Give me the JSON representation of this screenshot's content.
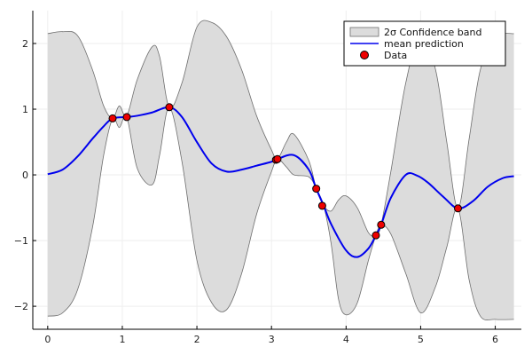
{
  "chart_data": {
    "type": "line",
    "title": "",
    "xlabel": "",
    "ylabel": "",
    "xlim": [
      -0.2,
      6.35
    ],
    "ylim": [
      -2.35,
      2.5
    ],
    "x_ticks": [
      0,
      1,
      2,
      3,
      4,
      5,
      6
    ],
    "y_ticks": [
      -2,
      -1,
      0,
      1,
      2
    ],
    "grid": true,
    "legend_position": "top-right",
    "legend": [
      {
        "label": "2σ Confidence band",
        "kind": "band"
      },
      {
        "label": "mean prediction",
        "kind": "line"
      },
      {
        "label": "Data",
        "kind": "marker"
      }
    ],
    "colors": {
      "band_fill": "#dcdcdc",
      "band_edge": "#6e6e6e",
      "mean": "#0000ee",
      "marker_fill": "#ee0000",
      "marker_edge": "#000000",
      "axis": "#000000",
      "grid": "#eeeeee"
    },
    "series": [
      {
        "name": "mean prediction",
        "x": [
          0,
          0.2,
          0.4,
          0.6,
          0.75,
          0.87,
          1.06,
          1.2,
          1.4,
          1.63,
          1.8,
          2.0,
          2.2,
          2.4,
          2.6,
          2.8,
          3.0,
          3.08,
          3.3,
          3.5,
          3.6,
          3.7,
          3.8,
          4.0,
          4.15,
          4.3,
          4.4,
          4.47,
          4.6,
          4.8,
          4.95,
          5.1,
          5.3,
          5.5,
          5.7,
          5.9,
          6.1,
          6.25
        ],
        "y": [
          0.01,
          0.08,
          0.28,
          0.55,
          0.74,
          0.86,
          0.88,
          0.9,
          0.95,
          1.03,
          0.88,
          0.5,
          0.17,
          0.05,
          0.08,
          0.14,
          0.2,
          0.24,
          0.3,
          0.08,
          -0.21,
          -0.47,
          -0.75,
          -1.15,
          -1.25,
          -1.12,
          -0.92,
          -0.76,
          -0.35,
          0.0,
          -0.01,
          -0.12,
          -0.33,
          -0.51,
          -0.4,
          -0.18,
          -0.05,
          -0.02
        ]
      },
      {
        "name": "2σ Confidence band",
        "x": [
          0,
          0.2,
          0.4,
          0.6,
          0.75,
          0.87,
          0.96,
          1.06,
          1.2,
          1.4,
          1.5,
          1.63,
          1.8,
          2.0,
          2.2,
          2.4,
          2.6,
          2.8,
          3.0,
          3.08,
          3.2,
          3.3,
          3.5,
          3.6,
          3.7,
          3.8,
          3.9,
          4.0,
          4.15,
          4.3,
          4.4,
          4.47,
          4.6,
          4.8,
          5.0,
          5.2,
          5.35,
          5.5,
          5.65,
          5.8,
          6.0,
          6.25
        ],
        "upper": [
          2.15,
          2.18,
          2.12,
          1.6,
          1.05,
          0.86,
          1.05,
          0.9,
          1.45,
          1.95,
          1.8,
          1.03,
          1.4,
          2.25,
          2.32,
          2.1,
          1.6,
          0.9,
          0.38,
          0.24,
          0.5,
          0.62,
          0.22,
          -0.21,
          -0.47,
          -0.55,
          -0.38,
          -0.32,
          -0.5,
          -0.88,
          -0.92,
          -0.76,
          0.05,
          1.4,
          2.15,
          1.6,
          0.5,
          -0.51,
          0.55,
          1.6,
          2.1,
          2.15
        ],
        "lower": [
          -2.15,
          -2.1,
          -1.75,
          -0.8,
          0.3,
          0.86,
          0.72,
          0.88,
          0.1,
          -0.15,
          0.3,
          1.03,
          0.2,
          -1.3,
          -1.95,
          -2.05,
          -1.5,
          -0.6,
          0.05,
          0.24,
          0.12,
          0.0,
          -0.03,
          -0.21,
          -0.47,
          -1.05,
          -1.9,
          -2.13,
          -1.95,
          -1.3,
          -0.92,
          -0.76,
          -0.9,
          -1.5,
          -2.1,
          -1.7,
          -1.1,
          -0.51,
          -1.6,
          -2.15,
          -2.2,
          -2.2
        ]
      },
      {
        "name": "Data",
        "x": [
          0.87,
          1.06,
          1.63,
          3.06,
          3.08,
          3.6,
          3.68,
          4.4,
          4.47,
          5.5
        ],
        "y": [
          0.86,
          0.88,
          1.03,
          0.23,
          0.24,
          -0.21,
          -0.47,
          -0.92,
          -0.76,
          -0.51
        ]
      }
    ]
  }
}
